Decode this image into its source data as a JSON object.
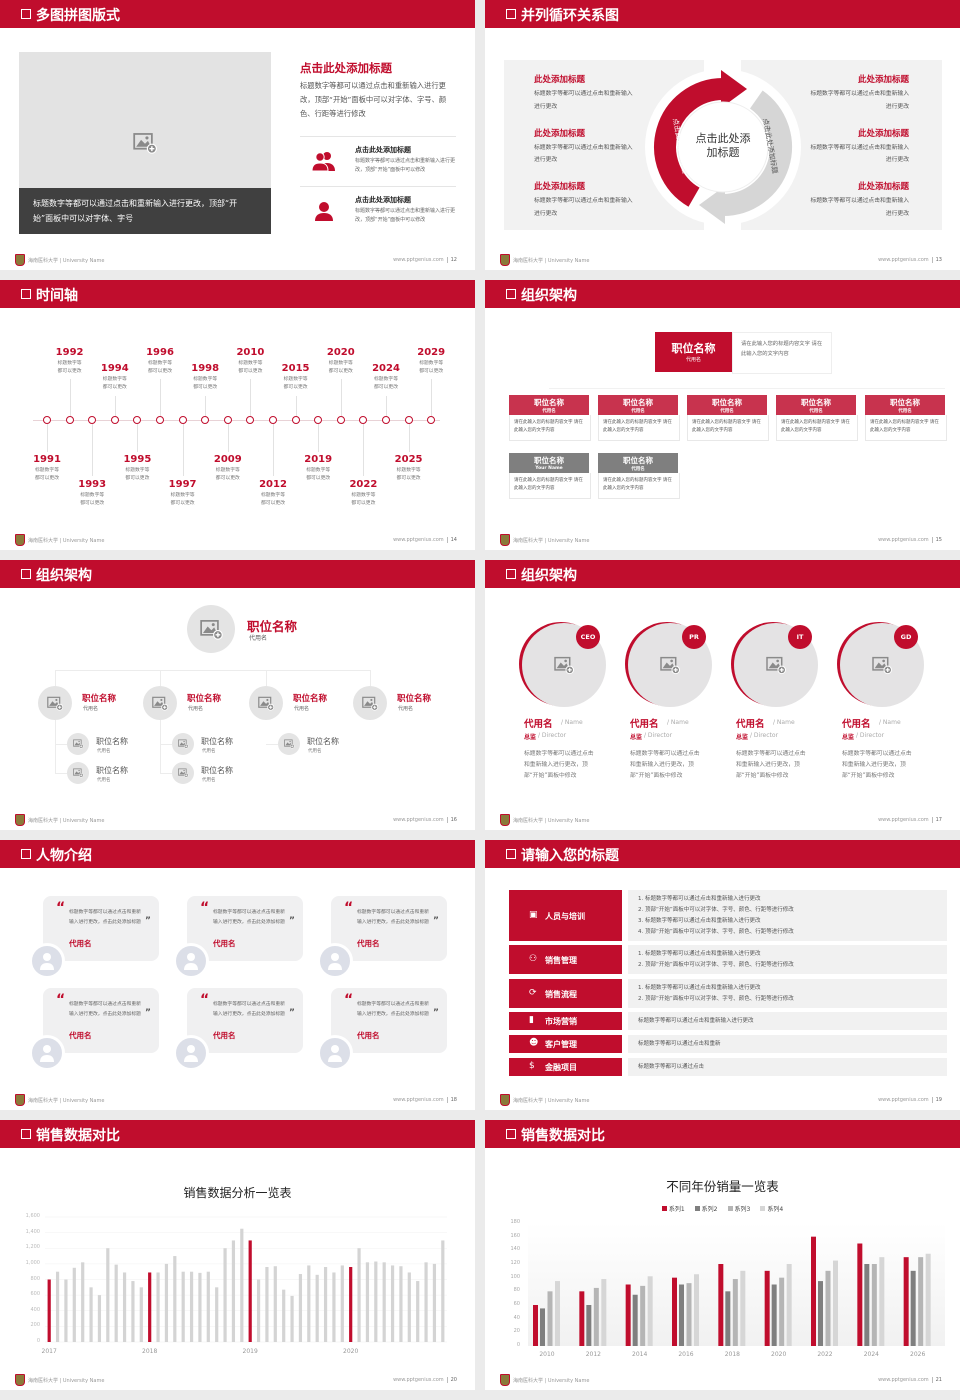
{
  "footer": {
    "university": "海南医科大学 | University Name",
    "website": "www.pptgenius.com"
  },
  "colors": {
    "accent": "#c00d2d",
    "accent_light": "#c8334e",
    "gray": "#7f7f7f",
    "panel": "#f1f1f1",
    "image_placeholder": "#e3e3e3"
  },
  "slides": [
    {
      "title": "多图拼图版式",
      "page": "12",
      "caption": "标题数字等都可以通过点击和重新输入进行更改，顶部“开始”面板中可以对字体、字号",
      "heading": "点击此处添加标题",
      "body": "标题数字等都可以通过点击和重新输入进行更改，顶部“开始”面板中可以对字体、字号、颜色、行距等进行修改",
      "items": [
        {
          "icon": "users-icon",
          "title": "点击此处添加标题",
          "text": "标题数字等都可以通过点击和重新输入进行更改，顶部“开始”面板中可以修改"
        },
        {
          "icon": "user-icon",
          "title": "点击此处添加标题",
          "text": "标题数字等都可以通过点击和重新输入进行更改，顶部“开始”面板中可以修改"
        }
      ]
    },
    {
      "title": "并列循环关系图",
      "page": "13",
      "center": "点击此处添加标题",
      "arc_left": "点击此处添加标题",
      "arc_right": "点击此处添加标题",
      "left_items": [
        {
          "title": "此处添加标题",
          "text": "标题数字等都可以通过点击和重新输入进行更改"
        },
        {
          "title": "此处添加标题",
          "text": "标题数字等都可以通过点击和重新输入进行更改"
        },
        {
          "title": "此处添加标题",
          "text": "标题数字等都可以通过点击和重新输入进行更改"
        }
      ],
      "right_items": [
        {
          "title": "此处添加标题",
          "text": "标题数字等都可以通过点击和重新输入进行更改"
        },
        {
          "title": "此处添加标题",
          "text": "标题数字等都可以通过点击和重新输入进行更改"
        },
        {
          "title": "此处添加标题",
          "text": "标题数字等都可以通过点击和重新输入进行更改"
        }
      ]
    },
    {
      "title": "时间轴",
      "page": "14",
      "events": [
        {
          "year": "1991",
          "text": "标题数字等都可以更改"
        },
        {
          "year": "1992",
          "text": "标题数字等都可以更改"
        },
        {
          "year": "1993",
          "text": "标题数字等都可以更改"
        },
        {
          "year": "1994",
          "text": "标题数字等都可以更改"
        },
        {
          "year": "1995",
          "text": "标题数字等都可以更改"
        },
        {
          "year": "1996",
          "text": "标题数字等都可以更改"
        },
        {
          "year": "1997",
          "text": "标题数字等都可以更改"
        },
        {
          "year": "1998",
          "text": "标题数字等都可以更改"
        },
        {
          "year": "2009",
          "text": "标题数字等都可以更改"
        },
        {
          "year": "2010",
          "text": "标题数字等都可以更改"
        },
        {
          "year": "2012",
          "text": "标题数字等都可以更改"
        },
        {
          "year": "2015",
          "text": "标题数字等都可以更改"
        },
        {
          "year": "2019",
          "text": "标题数字等都可以更改"
        },
        {
          "year": "2020",
          "text": "标题数字等都可以更改"
        },
        {
          "year": "2022",
          "text": "标题数字等都可以更改"
        },
        {
          "year": "2024",
          "text": "标题数字等都可以更改"
        },
        {
          "year": "2025",
          "text": "标题数字等都可以更改"
        },
        {
          "year": "2029",
          "text": "标题数字等都可以更改"
        }
      ]
    },
    {
      "title": "组织架构",
      "page": "15",
      "top": {
        "title": "职位名称",
        "sub": "代用名",
        "desc": "请在此输入您的标题内容文字 请在此输入您的文字内容"
      },
      "boxes": [
        {
          "title": "职位名称",
          "sub": "代用名",
          "desc": "请在此输入您的标题内容文字 请在此输入您的文字内容",
          "color": "red"
        },
        {
          "title": "职位名称",
          "sub": "代用名",
          "desc": "请在此输入您的标题内容文字 请在此输入您的文字内容",
          "color": "red"
        },
        {
          "title": "职位名称",
          "sub": "代用名",
          "desc": "请在此输入您的标题内容文字 请在此输入您的文字内容",
          "color": "red"
        },
        {
          "title": "职位名称",
          "sub": "代用名",
          "desc": "请在此输入您的标题内容文字 请在此输入您的文字内容",
          "color": "red"
        },
        {
          "title": "职位名称",
          "sub": "代用名",
          "desc": "请在此输入您的标题内容文字 请在此输入您的文字内容",
          "color": "red"
        },
        {
          "title": "职位名称",
          "sub": "Your Name",
          "desc": "请在此输入您的标题内容文字 请在此输入您的文字内容",
          "color": "gray"
        },
        {
          "title": "职位名称",
          "sub": "代用名",
          "desc": "请在此输入您的标题内容文字 请在此输入您的文字内容",
          "color": "gray"
        }
      ]
    },
    {
      "title": "组织架构",
      "page": "16",
      "top": {
        "title": "职位名称",
        "sub": "代用名"
      },
      "level2": [
        {
          "title": "职位名称",
          "sub": "代用名"
        },
        {
          "title": "职位名称",
          "sub": "代用名"
        },
        {
          "title": "职位名称",
          "sub": "代用名"
        },
        {
          "title": "职位名称",
          "sub": "代用名"
        }
      ],
      "level3": [
        {
          "parent": 0,
          "title": "职位名称",
          "sub": "代用名"
        },
        {
          "parent": 0,
          "title": "职位名称",
          "sub": "代用名"
        },
        {
          "parent": 1,
          "title": "职位名称",
          "sub": "代用名"
        },
        {
          "parent": 1,
          "title": "职位名称",
          "sub": "代用名"
        },
        {
          "parent": 2,
          "title": "职位名称",
          "sub": "代用名"
        }
      ]
    },
    {
      "title": "组织架构",
      "page": "17",
      "cards": [
        {
          "badge": "CEO",
          "name": "代用名",
          "name_en": "/ Name",
          "role": "总监",
          "role_en": "/ Director",
          "desc": "标题数字等都可以通过点击和重新输入进行更改，顶部“开始”面板中修改"
        },
        {
          "badge": "PR",
          "name": "代用名",
          "name_en": "/ Name",
          "role": "总监",
          "role_en": "/ Director",
          "desc": "标题数字等都可以通过点击和重新输入进行更改，顶部“开始”面板中修改"
        },
        {
          "badge": "IT",
          "name": "代用名",
          "name_en": "/ Name",
          "role": "总监",
          "role_en": "/ Director",
          "desc": "标题数字等都可以通过点击和重新输入进行更改，顶部“开始”面板中修改"
        },
        {
          "badge": "GD",
          "name": "代用名",
          "name_en": "/ Name",
          "role": "总监",
          "role_en": "/ Director",
          "desc": "标题数字等都可以通过点击和重新输入进行更改，顶部“开始”面板中修改"
        }
      ]
    },
    {
      "title": "人物介绍",
      "page": "18",
      "quote_open": "“",
      "quote_close": "”",
      "cards": [
        {
          "text": "标题数字等都可以通过点击和重新输入进行更改，点击此处添加标题",
          "name": "代用名"
        },
        {
          "text": "标题数字等都可以通过点击和重新输入进行更改，点击此处添加标题",
          "name": "代用名"
        },
        {
          "text": "标题数字等都可以通过点击和重新输入进行更改，点击此处添加标题",
          "name": "代用名"
        },
        {
          "text": "标题数字等都可以通过点击和重新输入进行更改，点击此处添加标题",
          "name": "代用名"
        },
        {
          "text": "标题数字等都可以通过点击和重新输入进行更改，点击此处添加标题",
          "name": "代用名"
        },
        {
          "text": "标题数字等都可以通过点击和重新输入进行更改，点击此处添加标题",
          "name": "代用名"
        }
      ]
    },
    {
      "title": "请输入您的标题",
      "page": "19",
      "rows": [
        {
          "icon": "training-icon",
          "glyph": "▣",
          "label": "人员与培训",
          "lines": [
            "1.  标题数字等都可以通过点击和重新输入进行更改",
            "2.  顶部“开始”面板中可以对字体、字号、颜色、行距等进行修改",
            "3.  标题数字等都可以通过点击和重新输入进行更改",
            "4.  顶部“开始”面板中可以对字体、字号、颜色、行距等进行修改"
          ]
        },
        {
          "icon": "sales-management-icon",
          "glyph": "⚇",
          "label": "销售管理",
          "lines": [
            "1.  标题数字等都可以通过点击和重新输入进行更改",
            "2.  顶部“开始”面板中可以对字体、字号、颜色、行距等进行修改"
          ]
        },
        {
          "icon": "cycle-process-icon",
          "glyph": "⟳",
          "label": "销售流程",
          "lines": [
            "1.  标题数字等都可以通过点击和重新输入进行更改",
            "2.  顶部“开始”面板中可以对字体、字号、颜色、行距等进行修改"
          ]
        },
        {
          "icon": "bar-chart-icon",
          "glyph": "▮",
          "label": "市场营销",
          "lines": [
            "标题数字等都可以通过点击和重新输入进行更改"
          ]
        },
        {
          "icon": "customers-icon",
          "glyph": "☻",
          "label": "客户管理",
          "lines": [
            "标题数字等都可以通过点击和重新"
          ]
        },
        {
          "icon": "finance-icon",
          "glyph": "$",
          "label": "金融项目",
          "lines": [
            "标题数字等都可以通过点击"
          ]
        }
      ]
    },
    {
      "title": "销售数据对比",
      "page": "20"
    },
    {
      "title": "销售数据对比",
      "page": "21"
    }
  ],
  "chart_data": [
    {
      "type": "bar",
      "title": "销售数据分析一览表",
      "xlabel": "",
      "ylabel": "",
      "ylim": [
        0,
        1600
      ],
      "yticks": [
        "0",
        "200",
        "400",
        "600",
        "800",
        "1,000",
        "1,200",
        "1,400",
        "1,600"
      ],
      "x_tick_labels": [
        "2017",
        "2018",
        "2019",
        "2020"
      ],
      "grid": true,
      "values": [
        800,
        900,
        800,
        950,
        1020,
        700,
        600,
        1200,
        990,
        890,
        780,
        700,
        890,
        890,
        1000,
        1100,
        900,
        900,
        885,
        900,
        700,
        1200,
        1300,
        1450,
        1300,
        800,
        960,
        970,
        670,
        590,
        870,
        980,
        860,
        960,
        890,
        980,
        960,
        1200,
        1020,
        1030,
        1020,
        980,
        970,
        890,
        780,
        1020,
        1000,
        1300
      ],
      "highlight_indices": [
        0,
        12,
        24,
        36
      ],
      "highlight_color": "#c00d2d",
      "bar_color": "#d4d4d4"
    },
    {
      "type": "bar",
      "title": "不同年份销量一览表",
      "xlabel": "",
      "ylabel": "",
      "ylim": [
        0,
        180
      ],
      "legend": "top",
      "yticks": [
        "0",
        "20",
        "40",
        "60",
        "80",
        "100",
        "120",
        "140",
        "160",
        "180"
      ],
      "categories": [
        "2010",
        "2012",
        "2014",
        "2016",
        "2018",
        "2020",
        "2022",
        "2024",
        "2026"
      ],
      "series": [
        {
          "name": "系列1",
          "color": "#c00d2d",
          "values": [
            60,
            80,
            90,
            100,
            120,
            110,
            160,
            150,
            130
          ]
        },
        {
          "name": "系列2",
          "color": "#7f7f7f",
          "values": [
            55,
            60,
            75,
            90,
            80,
            90,
            95,
            120,
            110
          ]
        },
        {
          "name": "系列3",
          "color": "#b5b5b5",
          "values": [
            80,
            85,
            88,
            92,
            98,
            100,
            110,
            120,
            130
          ]
        },
        {
          "name": "系列4",
          "color": "#d6d6d6",
          "values": [
            95,
            98,
            102,
            105,
            110,
            120,
            125,
            130,
            135
          ]
        }
      ]
    }
  ]
}
